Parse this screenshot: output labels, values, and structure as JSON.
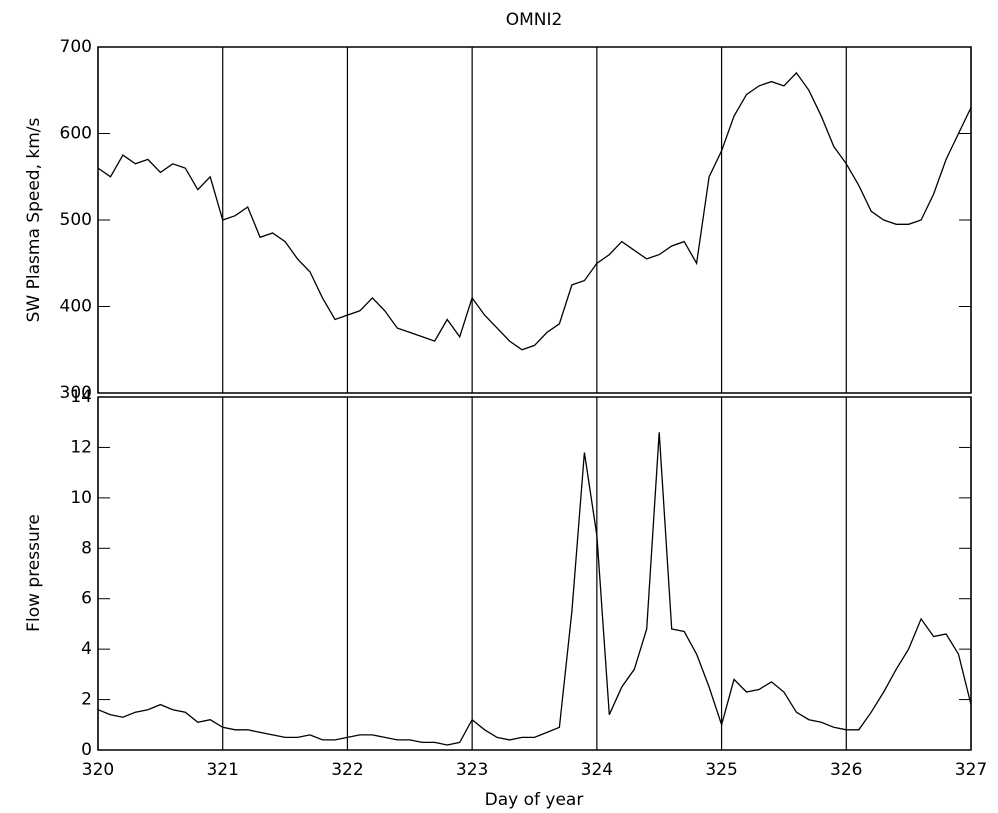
{
  "chart_data": [
    {
      "type": "line",
      "title": "OMNI2",
      "y_label": "SW Plasma Speed, km/s",
      "color": "#000000",
      "x": [
        320.0,
        320.1,
        320.2,
        320.3,
        320.4,
        320.5,
        320.6,
        320.7,
        320.8,
        320.9,
        321.0,
        321.1,
        321.2,
        321.3,
        321.4,
        321.5,
        321.6,
        321.7,
        321.8,
        321.9,
        322.0,
        322.1,
        322.2,
        322.3,
        322.4,
        322.5,
        322.6,
        322.7,
        322.8,
        322.9,
        323.0,
        323.1,
        323.2,
        323.3,
        323.4,
        323.5,
        323.6,
        323.7,
        323.8,
        323.9,
        324.0,
        324.1,
        324.2,
        324.3,
        324.4,
        324.5,
        324.6,
        324.7,
        324.8,
        324.9,
        325.0,
        325.1,
        325.2,
        325.3,
        325.4,
        325.5,
        325.6,
        325.7,
        325.8,
        325.9,
        326.0,
        326.1,
        326.2,
        326.3,
        326.4,
        326.5,
        326.6,
        326.7,
        326.8,
        326.9,
        327.0
      ],
      "values": [
        560,
        550,
        575,
        565,
        570,
        555,
        565,
        560,
        535,
        550,
        500,
        505,
        515,
        480,
        485,
        475,
        455,
        440,
        410,
        385,
        390,
        395,
        410,
        395,
        375,
        370,
        365,
        360,
        385,
        365,
        410,
        390,
        375,
        360,
        350,
        355,
        370,
        380,
        425,
        430,
        450,
        460,
        475,
        465,
        455,
        460,
        470,
        475,
        450,
        550,
        580,
        620,
        645,
        655,
        660,
        655,
        670,
        650,
        620,
        585,
        565,
        540,
        510,
        500,
        495,
        495,
        500,
        530,
        570,
        600,
        630
      ],
      "xlim": [
        320,
        327
      ],
      "ylim": [
        300,
        700
      ],
      "yticks": [
        300,
        400,
        500,
        600,
        700
      ]
    },
    {
      "type": "line",
      "x_label": "Day of year",
      "y_label": "Flow pressure",
      "color": "#000000",
      "x": [
        320.0,
        320.1,
        320.2,
        320.3,
        320.4,
        320.5,
        320.6,
        320.7,
        320.8,
        320.9,
        321.0,
        321.1,
        321.2,
        321.3,
        321.4,
        321.5,
        321.6,
        321.7,
        321.8,
        321.9,
        322.0,
        322.1,
        322.2,
        322.3,
        322.4,
        322.5,
        322.6,
        322.7,
        322.8,
        322.9,
        323.0,
        323.1,
        323.2,
        323.3,
        323.4,
        323.5,
        323.6,
        323.7,
        323.8,
        323.9,
        324.0,
        324.1,
        324.2,
        324.3,
        324.4,
        324.5,
        324.6,
        324.7,
        324.8,
        324.9,
        325.0,
        325.1,
        325.2,
        325.3,
        325.4,
        325.5,
        325.6,
        325.7,
        325.8,
        325.9,
        326.0,
        326.1,
        326.2,
        326.3,
        326.4,
        326.5,
        326.6,
        326.7,
        326.8,
        326.9,
        327.0
      ],
      "values": [
        1.6,
        1.4,
        1.3,
        1.5,
        1.6,
        1.8,
        1.6,
        1.5,
        1.1,
        1.2,
        0.9,
        0.8,
        0.8,
        0.7,
        0.6,
        0.5,
        0.5,
        0.6,
        0.4,
        0.4,
        0.5,
        0.6,
        0.6,
        0.5,
        0.4,
        0.4,
        0.3,
        0.3,
        0.2,
        0.3,
        1.2,
        0.8,
        0.5,
        0.4,
        0.5,
        0.5,
        0.7,
        0.9,
        5.5,
        11.8,
        8.5,
        1.4,
        2.5,
        3.2,
        4.8,
        12.6,
        4.8,
        4.7,
        3.8,
        2.5,
        1.0,
        2.8,
        2.3,
        2.4,
        2.7,
        2.3,
        1.5,
        1.2,
        1.1,
        0.9,
        0.8,
        0.8,
        1.5,
        2.3,
        3.2,
        4.0,
        5.2,
        4.5,
        4.6,
        3.8,
        1.8
      ],
      "xlim": [
        320,
        327
      ],
      "xticks": [
        320,
        321,
        322,
        323,
        324,
        325,
        326,
        327
      ],
      "ylim": [
        0,
        14
      ],
      "yticks": [
        0,
        2,
        4,
        6,
        8,
        10,
        12,
        14
      ]
    }
  ]
}
